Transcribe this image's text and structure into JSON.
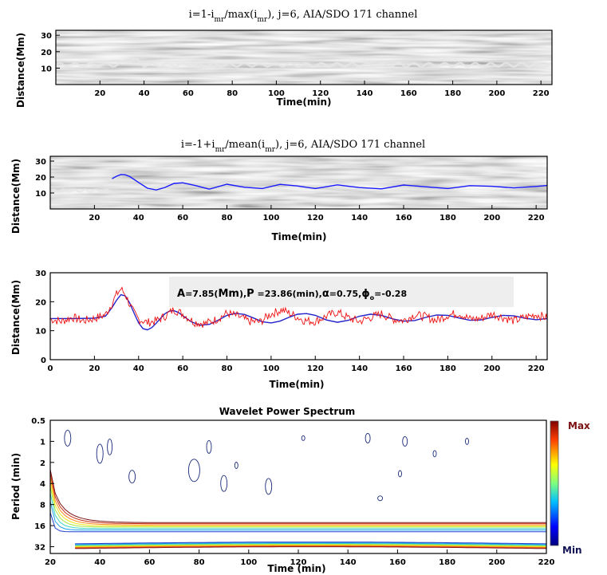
{
  "chart_data": [
    {
      "type": "heatmap",
      "title": "i=1-i_mr/max(i_mr), j=6, AIA/SDO 171 channel",
      "title_parts": {
        "a": "i=1-i",
        "sub1": "mr",
        "b": "/max(i",
        "sub2": "mr",
        "c": "), j=6,  AIA/SDO 171  channel"
      },
      "xlabel": "Time(min)",
      "ylabel": "Distance(Mm)",
      "xlim": [
        0,
        225
      ],
      "ylim": [
        0,
        33
      ],
      "xticks": [
        20,
        40,
        60,
        80,
        100,
        120,
        140,
        160,
        180,
        200,
        220
      ],
      "yticks": [
        10,
        20,
        30
      ],
      "colormap": "gray",
      "ridge_distance_Mm": 12
    },
    {
      "type": "heatmap",
      "title": "i=-1+i_mr/mean(i_mr), j=6, AIA/SDO 171 channel",
      "title_parts": {
        "a": "i=-1+i",
        "sub1": "mr",
        "b": "/mean(i",
        "sub2": "mr",
        "c": "), j=6,  AIA/SDO 171  channel"
      },
      "xlabel": "Time(min)",
      "ylabel": "Distance(Mm)",
      "xlim": [
        0,
        225
      ],
      "ylim": [
        0,
        33
      ],
      "xticks": [
        20,
        40,
        60,
        80,
        100,
        120,
        140,
        160,
        180,
        200,
        220
      ],
      "yticks": [
        10,
        20,
        30
      ],
      "colormap": "gray",
      "series": [
        {
          "color": "#1a1aff",
          "x": [
            28,
            30,
            32,
            34,
            36,
            40,
            44,
            48,
            52,
            56,
            60,
            66,
            72,
            80,
            88,
            96,
            104,
            112,
            120,
            130,
            140,
            150,
            160,
            170,
            180,
            190,
            200,
            210,
            220,
            225
          ],
          "values": [
            19,
            20.5,
            21.6,
            21.4,
            20.3,
            16.6,
            13.0,
            11.9,
            13.5,
            16.0,
            16.4,
            14.6,
            12.4,
            15.5,
            13.6,
            12.8,
            15.4,
            14.4,
            12.8,
            15.1,
            13.4,
            12.6,
            15.0,
            13.9,
            12.8,
            14.6,
            14.2,
            13.2,
            14.1,
            14.7
          ]
        }
      ]
    },
    {
      "type": "line",
      "xlabel": "Time(min)",
      "ylabel": "Distance(Mm)",
      "xlim": [
        0,
        225
      ],
      "ylim": [
        0,
        30
      ],
      "xticks": [
        0,
        20,
        40,
        60,
        80,
        100,
        120,
        140,
        160,
        180,
        200,
        220
      ],
      "yticks": [
        0,
        10,
        20,
        30
      ],
      "annotation": {
        "a": "A",
        "b": "=7.85(",
        "c": "Mm",
        "d": "),",
        "e": "P",
        "f": " =23.86(min),",
        "g": "α",
        "h": "=0.75,",
        "i": "ϕ",
        "j": "o",
        "k": "=-0.28"
      },
      "series": [
        {
          "color": "#ee1111",
          "x": [
            0,
            5,
            10,
            15,
            20,
            25,
            28,
            30,
            32,
            34,
            36,
            38,
            40,
            44,
            48,
            52,
            56,
            60,
            65,
            70,
            75,
            80,
            85,
            90,
            95,
            100,
            105,
            110,
            115,
            120,
            125,
            130,
            135,
            140,
            145,
            150,
            155,
            160,
            165,
            170,
            175,
            180,
            185,
            190,
            195,
            200,
            205,
            210,
            215,
            220,
            225
          ],
          "values": [
            14.0,
            13.2,
            14.6,
            13.4,
            14.2,
            15.5,
            19.5,
            22.5,
            24.4,
            22.5,
            19.0,
            16.0,
            14.0,
            12.8,
            13.4,
            15.0,
            17.3,
            15.8,
            13.0,
            12.4,
            13.8,
            16.0,
            15.0,
            13.2,
            13.0,
            15.8,
            17.2,
            15.4,
            13.5,
            13.2,
            15.0,
            16.4,
            14.4,
            13.2,
            14.6,
            15.8,
            14.0,
            13.5,
            15.5,
            14.8,
            13.5,
            15.4,
            16.0,
            14.0,
            14.2,
            15.8,
            14.6,
            13.4,
            14.6,
            15.6,
            14.4
          ]
        },
        {
          "color": "#2222cc",
          "x": [
            0,
            10,
            20,
            25,
            28,
            30,
            32,
            34,
            36,
            38,
            40,
            42,
            44,
            46,
            48,
            50,
            52,
            54,
            56,
            58,
            60,
            64,
            68,
            72,
            76,
            80,
            84,
            88,
            92,
            96,
            100,
            104,
            108,
            112,
            116,
            120,
            125,
            130,
            135,
            140,
            145,
            150,
            155,
            160,
            165,
            170,
            175,
            180,
            185,
            190,
            195,
            200,
            205,
            210,
            215,
            220,
            225
          ],
          "values": [
            14.2,
            14.2,
            14.3,
            15.0,
            18.0,
            20.5,
            22.4,
            22.0,
            19.5,
            16.0,
            12.7,
            10.7,
            10.3,
            11.1,
            12.6,
            14.3,
            15.9,
            16.8,
            16.9,
            16.3,
            15.2,
            13.0,
            11.9,
            12.2,
            13.6,
            15.3,
            16.0,
            15.6,
            14.4,
            13.1,
            12.7,
            13.3,
            14.6,
            15.7,
            15.9,
            15.3,
            13.7,
            12.9,
            13.6,
            15.0,
            15.7,
            15.3,
            14.1,
            13.3,
            13.5,
            14.6,
            15.4,
            15.3,
            14.4,
            13.6,
            13.7,
            14.6,
            15.3,
            15.1,
            14.3,
            13.8,
            14.2
          ]
        }
      ]
    },
    {
      "type": "heatmap",
      "subtype": "contour",
      "title": "Wavelet Power Spectrum",
      "xlabel": "Time (min)",
      "ylabel": "Period (min)",
      "xlim": [
        20,
        220
      ],
      "ylim": [
        0.5,
        40
      ],
      "yscale": "log2",
      "y_inverted": true,
      "xticks": [
        20,
        40,
        60,
        80,
        100,
        120,
        140,
        160,
        180,
        200,
        220
      ],
      "yticks": [
        0.5,
        1,
        2,
        4,
        8,
        16,
        32
      ],
      "ytick_labels": [
        "0.5",
        "1",
        "2",
        "4",
        "8",
        "16",
        "32"
      ],
      "colorbar": {
        "max_label": "Max",
        "min_label": "Min",
        "colormap": "jet"
      },
      "contour_levels": [
        {
          "color": "#7a1010",
          "period": 14.5,
          "decay": 7.0
        },
        {
          "color": "#c9301a",
          "period": 15.0,
          "decay": 6.2
        },
        {
          "color": "#ff8a1a",
          "period": 15.6,
          "decay": 5.4
        },
        {
          "color": "#f2e61a",
          "period": 16.2,
          "decay": 4.6
        },
        {
          "color": "#a8e63a",
          "period": 16.8,
          "decay": 3.8
        },
        {
          "color": "#3ed6c2",
          "period": 17.6,
          "decay": 3.0
        },
        {
          "color": "#1aa0e6",
          "period": 18.5,
          "decay": 2.2
        },
        {
          "color": "#1a3fd0",
          "period": 19.6,
          "decay": 1.4
        }
      ]
    }
  ]
}
